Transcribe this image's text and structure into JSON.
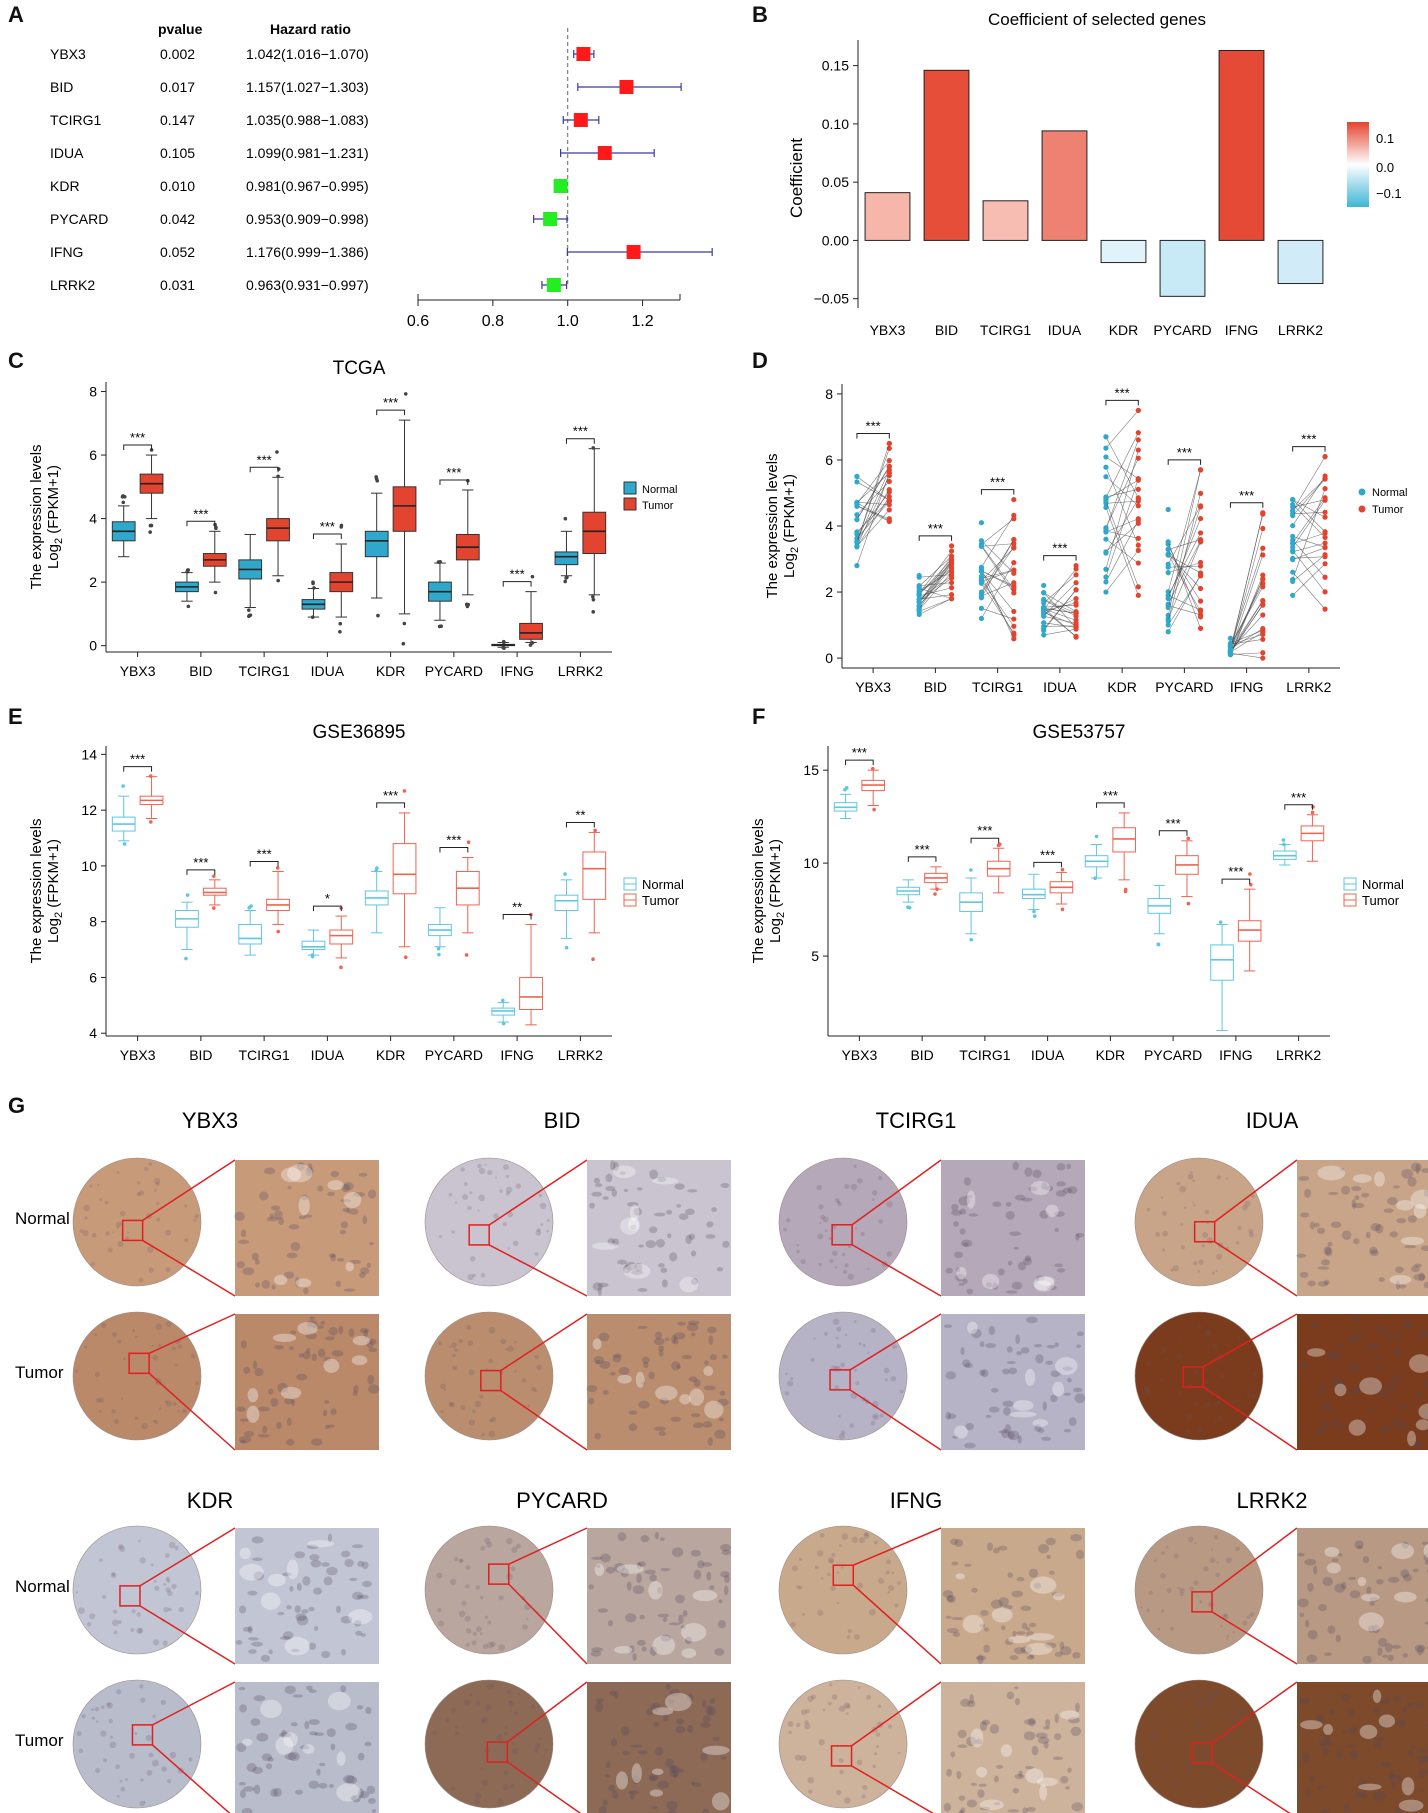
{
  "colors": {
    "normal": "#2fa8cc",
    "tumor": "#e3442f",
    "forest_up": "#ff1a1a",
    "forest_down": "#22ee22",
    "ci_line": "#3a3aa0",
    "normal_light": "#5bc4dd",
    "tumor_light": "#ef6e5c",
    "ihc_frame": "#e02020"
  },
  "genes": [
    "YBX3",
    "BID",
    "TCIRG1",
    "IDUA",
    "KDR",
    "PYCARD",
    "IFNG",
    "LRRK2"
  ],
  "chart_data": [
    {
      "panel": "A",
      "type": "forest",
      "headers": {
        "pvalue": "pvalue",
        "hr": "Hazard ratio"
      },
      "rows": [
        {
          "gene": "YBX3",
          "pvalue": "0.002",
          "hr_text": "1.042(1.016−1.070)",
          "hr": 1.042,
          "lo": 1.016,
          "hi": 1.07
        },
        {
          "gene": "BID",
          "pvalue": "0.017",
          "hr_text": "1.157(1.027−1.303)",
          "hr": 1.157,
          "lo": 1.027,
          "hi": 1.303
        },
        {
          "gene": "TCIRG1",
          "pvalue": "0.147",
          "hr_text": "1.035(0.988−1.083)",
          "hr": 1.035,
          "lo": 0.988,
          "hi": 1.083
        },
        {
          "gene": "IDUA",
          "pvalue": "0.105",
          "hr_text": "1.099(0.981−1.231)",
          "hr": 1.099,
          "lo": 0.981,
          "hi": 1.231
        },
        {
          "gene": "KDR",
          "pvalue": "0.010",
          "hr_text": "0.981(0.967−0.995)",
          "hr": 0.981,
          "lo": 0.967,
          "hi": 0.995
        },
        {
          "gene": "PYCARD",
          "pvalue": "0.042",
          "hr_text": "0.953(0.909−0.998)",
          "hr": 0.953,
          "lo": 0.909,
          "hi": 0.998
        },
        {
          "gene": "IFNG",
          "pvalue": "0.052",
          "hr_text": "1.176(0.999−1.386)",
          "hr": 1.176,
          "lo": 0.999,
          "hi": 1.386
        },
        {
          "gene": "LRRK2",
          "pvalue": "0.031",
          "hr_text": "0.963(0.931−0.997)",
          "hr": 0.963,
          "lo": 0.931,
          "hi": 0.997
        }
      ],
      "xlim": [
        0.6,
        1.3
      ],
      "xticks": [
        0.6,
        0.8,
        1.0,
        1.2
      ],
      "xtick_labels": [
        "0.6",
        "0.8",
        "1.0",
        "1.2"
      ],
      "ref_line": 1.0
    },
    {
      "panel": "B",
      "type": "bar",
      "title": "Coefficient of selected genes",
      "ylabel": "Coefficient",
      "categories": [
        "YBX3",
        "BID",
        "TCIRG1",
        "IDUA",
        "KDR",
        "PYCARD",
        "IFNG",
        "LRRK2"
      ],
      "values": [
        0.041,
        0.146,
        0.034,
        0.094,
        -0.019,
        -0.048,
        0.163,
        -0.037
      ],
      "ylim": [
        -0.058,
        0.172
      ],
      "yticks": [
        -0.05,
        0.0,
        0.05,
        0.1,
        0.15
      ],
      "ytick_labels": [
        "−0.05",
        "0.00",
        "0.05",
        "0.10",
        "0.15"
      ],
      "legend_ticks": [
        "0.1",
        "0.0",
        "−0.1"
      ]
    },
    {
      "panel": "C",
      "type": "boxplot",
      "title": "TCGA",
      "ylabel": "The expression levels",
      "ylabel2_pre": "Log",
      "ylabel2_sub": "2",
      "ylabel2_post": " (FPKM+1)",
      "ylim": [
        -0.2,
        8.3
      ],
      "yticks": [
        0,
        2,
        4,
        6,
        8
      ],
      "legend": [
        "Normal",
        "Tumor"
      ],
      "categories": [
        "YBX3",
        "BID",
        "TCIRG1",
        "IDUA",
        "KDR",
        "PYCARD",
        "IFNG",
        "LRRK2"
      ],
      "series": [
        {
          "name": "Normal",
          "boxes": [
            [
              2.8,
              3.3,
              3.6,
              3.9,
              4.4
            ],
            [
              1.4,
              1.7,
              1.85,
              2.0,
              2.3
            ],
            [
              1.2,
              2.1,
              2.4,
              2.7,
              3.5
            ],
            [
              0.9,
              1.15,
              1.3,
              1.45,
              1.8
            ],
            [
              1.5,
              2.8,
              3.3,
              3.6,
              4.8
            ],
            [
              0.8,
              1.4,
              1.7,
              2.0,
              2.6
            ],
            [
              -0.05,
              0.0,
              0.02,
              0.04,
              0.1
            ],
            [
              2.2,
              2.55,
              2.8,
              2.95,
              3.6
            ]
          ]
        },
        {
          "name": "Tumor",
          "boxes": [
            [
              4.0,
              4.8,
              5.1,
              5.4,
              6.0
            ],
            [
              2.0,
              2.5,
              2.7,
              2.9,
              3.6
            ],
            [
              2.2,
              3.3,
              3.7,
              4.0,
              5.3
            ],
            [
              0.9,
              1.7,
              2.0,
              2.3,
              3.2
            ],
            [
              1.0,
              3.6,
              4.4,
              5.0,
              7.1
            ],
            [
              1.6,
              2.7,
              3.1,
              3.5,
              4.9
            ],
            [
              0.1,
              0.2,
              0.4,
              0.7,
              1.7
            ],
            [
              1.6,
              2.9,
              3.6,
              4.2,
              6.2
            ]
          ]
        }
      ],
      "signif": [
        "***",
        "***",
        "***",
        "***",
        "***",
        "***",
        "***",
        "***"
      ]
    },
    {
      "panel": "D",
      "type": "paired-dot",
      "ylabel": "The expression levels",
      "ylabel2_pre": "Log",
      "ylabel2_sub": "2",
      "ylabel2_post": " (FPKM+1)",
      "ylim": [
        -0.3,
        8.3
      ],
      "yticks": [
        0,
        2,
        4,
        6,
        8
      ],
      "legend": [
        "Normal",
        "Tumor"
      ],
      "categories": [
        "YBX3",
        "BID",
        "TCIRG1",
        "IDUA",
        "KDR",
        "PYCARD",
        "IFNG",
        "LRRK2"
      ],
      "normal_range": [
        [
          2.8,
          5.5
        ],
        [
          1.3,
          2.5
        ],
        [
          1.2,
          4.1
        ],
        [
          0.7,
          2.2
        ],
        [
          2.0,
          6.7
        ],
        [
          0.6,
          4.5
        ],
        [
          -0.05,
          0.6
        ],
        [
          1.9,
          4.8
        ]
      ],
      "tumor_range": [
        [
          3.5,
          6.5
        ],
        [
          1.8,
          3.4
        ],
        [
          0.4,
          4.8
        ],
        [
          0.1,
          2.8
        ],
        [
          1.9,
          7.5
        ],
        [
          0.4,
          5.7
        ],
        [
          0.0,
          4.4
        ],
        [
          1.0,
          6.1
        ]
      ],
      "signif": [
        "***",
        "***",
        "***",
        "***",
        "***",
        "***",
        "***",
        "***"
      ]
    },
    {
      "panel": "E",
      "type": "boxplot",
      "title": "GSE36895",
      "ylabel": "The expression levels",
      "ylabel2_pre": "Log",
      "ylabel2_sub": "2",
      "ylabel2_post": " (FPKM+1)",
      "ylim": [
        3.9,
        14.3
      ],
      "yticks": [
        4,
        6,
        8,
        10,
        12,
        14
      ],
      "legend": [
        "Normal",
        "Tumor"
      ],
      "categories": [
        "YBX3",
        "BID",
        "TCIRG1",
        "IDUA",
        "KDR",
        "PYCARD",
        "IFNG",
        "LRRK2"
      ],
      "series": [
        {
          "name": "Normal",
          "boxes": [
            [
              10.9,
              11.25,
              11.5,
              11.75,
              12.5
            ],
            [
              7.0,
              7.8,
              8.1,
              8.4,
              8.7
            ],
            [
              6.8,
              7.2,
              7.4,
              7.9,
              8.4
            ],
            [
              6.8,
              7.0,
              7.1,
              7.3,
              7.7
            ],
            [
              7.6,
              8.6,
              8.85,
              9.1,
              9.8
            ],
            [
              7.1,
              7.5,
              7.7,
              7.9,
              8.5
            ],
            [
              4.4,
              4.65,
              4.8,
              4.9,
              5.1
            ],
            [
              7.4,
              8.4,
              8.75,
              8.95,
              9.5
            ]
          ]
        },
        {
          "name": "Tumor",
          "boxes": [
            [
              11.7,
              12.2,
              12.35,
              12.5,
              13.2
            ],
            [
              8.6,
              8.95,
              9.05,
              9.2,
              9.5
            ],
            [
              7.9,
              8.4,
              8.6,
              8.8,
              9.8
            ],
            [
              6.7,
              7.2,
              7.5,
              7.7,
              8.2
            ],
            [
              7.1,
              9.0,
              9.7,
              10.8,
              11.9
            ],
            [
              7.6,
              8.6,
              9.2,
              9.8,
              10.3
            ],
            [
              4.3,
              4.85,
              5.3,
              6.0,
              7.9
            ],
            [
              7.6,
              8.8,
              9.9,
              10.5,
              11.2
            ]
          ]
        }
      ],
      "signif": [
        "***",
        "***",
        "***",
        "*",
        "***",
        "***",
        "**",
        "**"
      ]
    },
    {
      "panel": "F",
      "type": "boxplot",
      "title": "GSE53757",
      "ylabel": "The expression levels",
      "ylabel2_pre": "Log",
      "ylabel2_sub": "2",
      "ylabel2_post": " (FPKM+1)",
      "ylim": [
        0.7,
        16.3
      ],
      "yticks": [
        5,
        10,
        15
      ],
      "legend": [
        "Normal",
        "Tumor"
      ],
      "categories": [
        "YBX3",
        "BID",
        "TCIRG1",
        "IDUA",
        "KDR",
        "PYCARD",
        "IFNG",
        "LRRK2"
      ],
      "series": [
        {
          "name": "Normal",
          "boxes": [
            [
              12.4,
              12.8,
              13.0,
              13.25,
              13.7
            ],
            [
              7.9,
              8.3,
              8.5,
              8.7,
              9.1
            ],
            [
              6.2,
              7.4,
              7.9,
              8.4,
              9.2
            ],
            [
              7.5,
              8.1,
              8.3,
              8.6,
              9.4
            ],
            [
              9.2,
              9.8,
              10.1,
              10.4,
              11.0
            ],
            [
              6.2,
              7.3,
              7.7,
              8.1,
              8.8
            ],
            [
              1.0,
              3.7,
              4.8,
              5.6,
              6.7
            ],
            [
              9.9,
              10.2,
              10.4,
              10.65,
              11.0
            ]
          ]
        },
        {
          "name": "Tumor",
          "boxes": [
            [
              13.1,
              13.9,
              14.2,
              14.45,
              15.0
            ],
            [
              8.6,
              8.95,
              9.2,
              9.45,
              9.8
            ],
            [
              8.4,
              9.3,
              9.7,
              10.1,
              10.8
            ],
            [
              7.8,
              8.4,
              8.7,
              9.0,
              9.5
            ],
            [
              9.1,
              10.6,
              11.3,
              11.9,
              12.7
            ],
            [
              8.2,
              9.4,
              9.9,
              10.4,
              11.2
            ],
            [
              4.2,
              5.8,
              6.4,
              6.9,
              8.6
            ],
            [
              10.1,
              11.2,
              11.6,
              12.0,
              12.6
            ]
          ]
        }
      ],
      "signif": [
        "***",
        "***",
        "***",
        "***",
        "***",
        "***",
        "***",
        "***"
      ]
    }
  ],
  "panel_g": {
    "row_labels": [
      "Normal",
      "Tumor"
    ],
    "top_genes": [
      "YBX3",
      "BID",
      "TCIRG1",
      "IDUA"
    ],
    "bottom_genes": [
      "KDR",
      "PYCARD",
      "IFNG",
      "LRRK2"
    ],
    "normal_tint": [
      "#c79a7a",
      "#c9c4cf",
      "#b5a8b8",
      "#c8a488",
      "#c2c6d4",
      "#b9a69e",
      "#c9a98c",
      "#b89a84"
    ],
    "tumor_tint": [
      "#b9896a",
      "#b98d6e",
      "#b7b3c6",
      "#7a3c1c",
      "#b8bccb",
      "#8c6a56",
      "#cdb39c",
      "#7d4a2c"
    ]
  },
  "panel_labels": [
    "A",
    "B",
    "C",
    "D",
    "E",
    "F",
    "G"
  ]
}
